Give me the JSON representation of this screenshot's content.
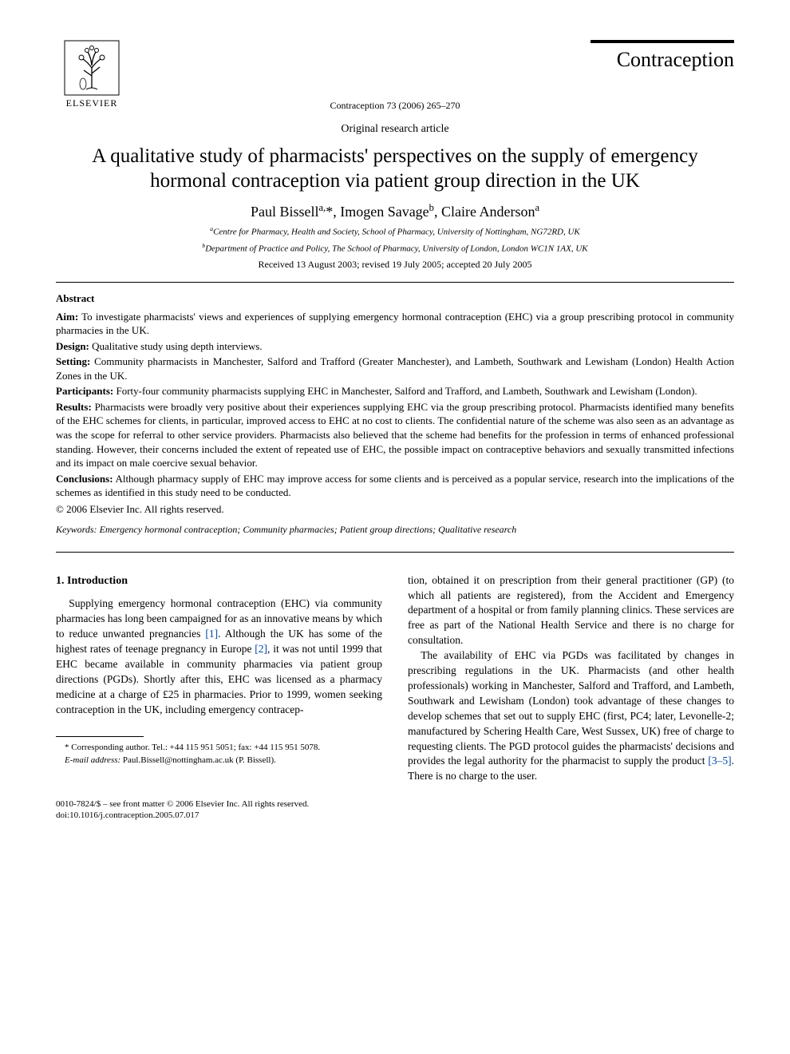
{
  "header": {
    "publisher_logo_label": "ELSEVIER",
    "journal_name": "Contraception",
    "citation": "Contraception 73 (2006) 265–270",
    "article_type": "Original research article"
  },
  "title": "A qualitative study of pharmacists' perspectives on the supply of emergency hormonal contraception via patient group direction in the UK",
  "authors_html": "Paul Bissell<sup>a,</sup>*, Imogen Savage<sup>b</sup>, Claire Anderson<sup>a</sup>",
  "affiliations": {
    "a": "Centre for Pharmacy, Health and Society, School of Pharmacy, University of Nottingham, NG72RD, UK",
    "b": "Department of Practice and Policy, The School of Pharmacy, University of London, London WC1N 1AX, UK"
  },
  "dates": "Received 13 August 2003; revised 19 July 2005; accepted 20 July 2005",
  "abstract": {
    "heading": "Abstract",
    "items": [
      {
        "lead": "Aim:",
        "text": " To investigate pharmacists' views and experiences of supplying emergency hormonal contraception (EHC) via a group prescribing protocol in community pharmacies in the UK."
      },
      {
        "lead": "Design:",
        "text": " Qualitative study using depth interviews."
      },
      {
        "lead": "Setting:",
        "text": " Community pharmacists in Manchester, Salford and Trafford (Greater Manchester), and Lambeth, Southwark and Lewisham (London) Health Action Zones in the UK."
      },
      {
        "lead": "Participants:",
        "text": " Forty-four community pharmacists supplying EHC in Manchester, Salford and Trafford, and Lambeth, Southwark and Lewisham (London)."
      },
      {
        "lead": "Results:",
        "text": " Pharmacists were broadly very positive about their experiences supplying EHC via the group prescribing protocol. Pharmacists identified many benefits of the EHC schemes for clients, in particular, improved access to EHC at no cost to clients. The confidential nature of the scheme was also seen as an advantage as was the scope for referral to other service providers. Pharmacists also believed that the scheme had benefits for the profession in terms of enhanced professional standing. However, their concerns included the extent of repeated use of EHC, the possible impact on contraceptive behaviors and sexually transmitted infections and its impact on male coercive sexual behavior."
      },
      {
        "lead": "Conclusions:",
        "text": " Although pharmacy supply of EHC may improve access for some clients and is perceived as a popular service, research into the implications of the schemes as identified in this study need to be conducted."
      }
    ],
    "copyright": "© 2006 Elsevier Inc. All rights reserved."
  },
  "keywords": {
    "label": "Keywords:",
    "text": " Emergency hormonal contraception; Community pharmacies; Patient group directions; Qualitative research"
  },
  "body": {
    "section_heading": "1. Introduction",
    "col1_p1_pre": "Supplying emergency hormonal contraception (EHC) via community pharmacies has long been campaigned for as an innovative means by which to reduce unwanted pregnancies ",
    "ref1": "[1]",
    "col1_p1_mid": ". Although the UK has some of the highest rates of teenage pregnancy in Europe ",
    "ref2": "[2]",
    "col1_p1_post": ", it was not until 1999 that EHC became available in community pharmacies via patient group directions (PGDs). Shortly after this, EHC was licensed as a pharmacy medicine at a charge of £25 in pharmacies. Prior to 1999, women seeking contraception in the UK, including emergency contracep-",
    "col2_p1": "tion, obtained it on prescription from their general practitioner (GP) (to which all patients are registered), from the Accident and Emergency department of a hospital or from family planning clinics. These services are free as part of the National Health Service and there is no charge for consultation.",
    "col2_p2_pre": "The availability of EHC via PGDs was facilitated by changes in prescribing regulations in the UK. Pharmacists (and other health professionals) working in Manchester, Salford and Trafford, and Lambeth, Southwark and Lewisham (London) took advantage of these changes to develop schemes that set out to supply EHC (first, PC4; later, Levonelle-2; manufactured by Schering Health Care, West Sussex, UK) free of charge to requesting clients. The PGD protocol guides the pharmacists' decisions and provides the legal authority for the pharmacist to supply the product ",
    "ref35": "[3–5]",
    "col2_p2_post": ". There is no charge to the user."
  },
  "footnotes": {
    "corresponding": "* Corresponding author. Tel.: +44 115 951 5051; fax: +44 115 951 5078.",
    "email_label": "E-mail address:",
    "email": " Paul.Bissell@nottingham.ac.uk (P. Bissell)."
  },
  "footer": {
    "line1": "0010-7824/$ – see front matter © 2006 Elsevier Inc. All rights reserved.",
    "line2": "doi:10.1016/j.contraception.2005.07.017"
  },
  "colors": {
    "text": "#000000",
    "link": "#0047ab",
    "background": "#ffffff"
  },
  "fonts": {
    "body_family": "Times New Roman",
    "title_pt": 25,
    "authors_pt": 18,
    "body_pt": 13.5,
    "abstract_pt": 13,
    "footnote_pt": 11
  }
}
